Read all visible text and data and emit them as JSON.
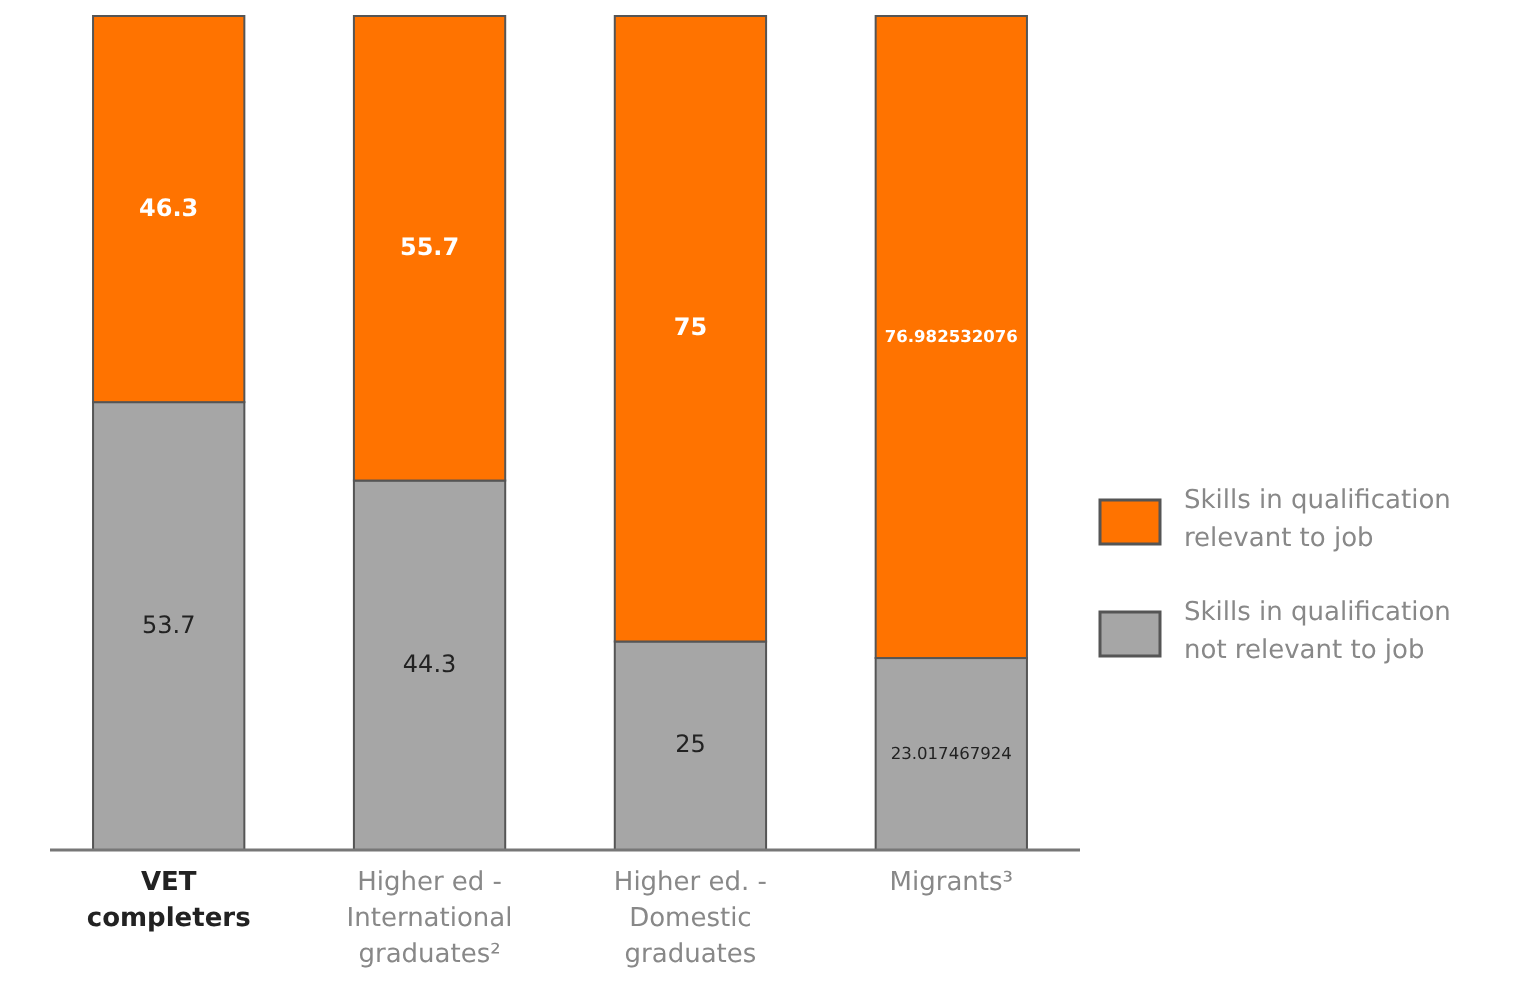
{
  "chart_data": {
    "type": "bar",
    "stacked": true,
    "categories": [
      "VET completers",
      "Higher ed - International graduates²",
      "Higher ed. - Domestic graduates",
      "Migrants³"
    ],
    "series": [
      {
        "name": "Skills in qualification not relevant to job",
        "color": "#a6a6a6",
        "values": [
          53.7,
          44.3,
          25,
          23.017467924
        ]
      },
      {
        "name": "Skills in qualification relevant to job",
        "color": "#ff7300",
        "values": [
          46.3,
          55.7,
          75,
          76.982532076
        ]
      }
    ],
    "data_labels": true,
    "legend": "right"
  }
}
